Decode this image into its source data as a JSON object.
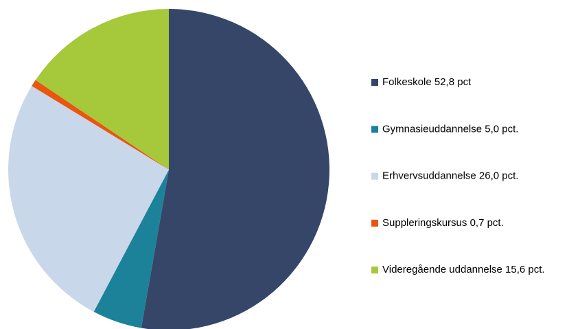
{
  "chart_data": {
    "type": "pie",
    "categories": [
      "Folkeskole 52,8 pct",
      "Gymnasieuddannelse 5,0 pct.",
      "Erhvervsuddannelse 26,0 pct.",
      "Suppleringskursus 0,7 pct.",
      "Videregående uddannelse 15,6 pct."
    ],
    "values": [
      52.8,
      5.0,
      26.0,
      0.7,
      15.6
    ],
    "colors": [
      "#354669",
      "#1b8299",
      "#c9d7ea",
      "#e8560f",
      "#a5c93a"
    ],
    "legend": "right"
  }
}
